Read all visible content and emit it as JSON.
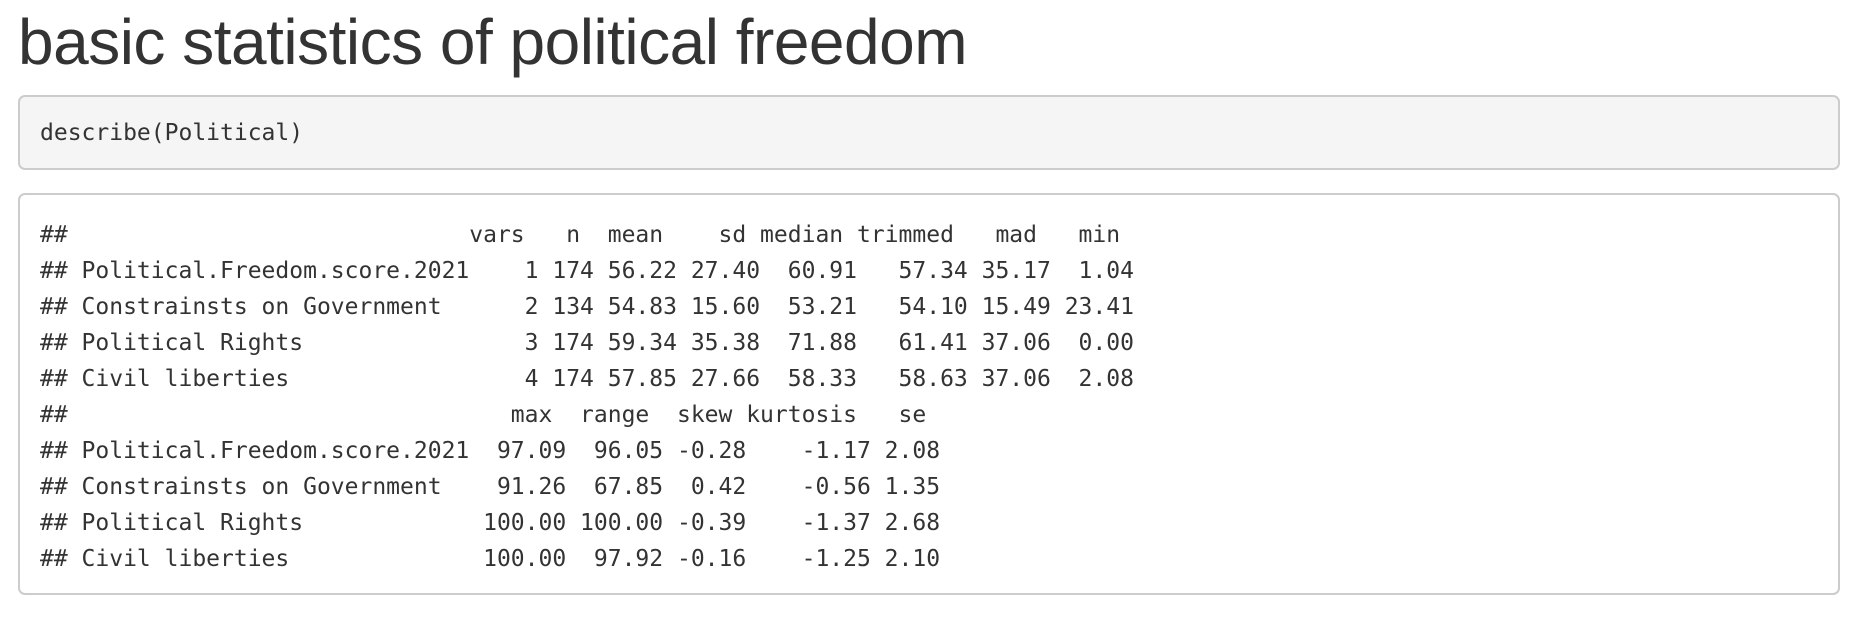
{
  "page": {
    "title": "basic statistics of political freedom"
  },
  "code": {
    "input": "describe(Political)"
  },
  "output": {
    "lines": [
      "##                             vars   n  mean    sd median trimmed   mad   min",
      "## Political.Freedom.score.2021    1 174 56.22 27.40  60.91   57.34 35.17  1.04",
      "## Constrainsts on Government      2 134 54.83 15.60  53.21   54.10 15.49 23.41",
      "## Political Rights                3 174 59.34 35.38  71.88   61.41 37.06  0.00",
      "## Civil liberties                 4 174 57.85 27.66  58.33   58.63 37.06  2.08",
      "##                                max  range  skew kurtosis   se",
      "## Political.Freedom.score.2021  97.09  96.05 -0.28    -1.17 2.08",
      "## Constrainsts on Government    91.26  67.85  0.42    -0.56 1.35",
      "## Political Rights             100.00 100.00 -0.39    -1.37 2.68",
      "## Civil liberties              100.00  97.92 -0.16    -1.25 2.10"
    ]
  },
  "colors": {
    "text": "#333333",
    "code_background": "#f5f5f5",
    "border": "#cccccc",
    "page_background": "#ffffff"
  }
}
